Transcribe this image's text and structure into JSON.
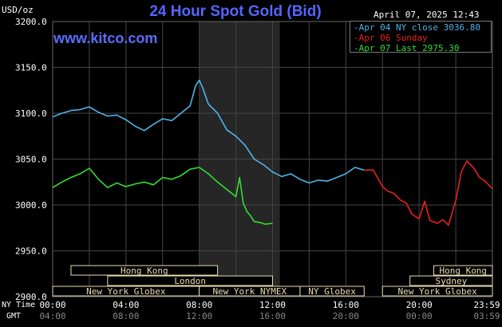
{
  "header": {
    "title": "24 Hour Spot Gold (Bid)",
    "unit": "USD/oz",
    "brand": "www.kitco.com",
    "date": "April 07, 2025 12:43"
  },
  "axis_labels": {
    "ny_time": "NY Time",
    "gmt": "GMT"
  },
  "colors": {
    "background": "#000000",
    "grid": "#444444",
    "shade": "#262626",
    "apr04": "#4fb3e8",
    "apr06": "#e82020",
    "apr07": "#33dd33",
    "title": "#5566ff",
    "session_fill": "#e8dcb4"
  },
  "chart_data": {
    "type": "line",
    "title": "24 Hour Spot Gold (Bid)",
    "ylabel": "USD/oz",
    "ylim": [
      2900,
      3200
    ],
    "y_ticks": [
      "3200.0",
      "3150.0",
      "3100.0",
      "3050.0",
      "3000.0",
      "2950.0",
      "2900.0"
    ],
    "x_ticks_ny": [
      "00:00",
      "04:00",
      "08:00",
      "12:00",
      "16:00",
      "20:00",
      "23:59"
    ],
    "x_ticks_gmt": [
      "04:00",
      "08:00",
      "12:00",
      "16:00",
      "20:00",
      "00:00",
      "03:59"
    ],
    "xlim_hours": [
      0,
      24
    ],
    "shaded_hours": [
      8.0,
      12.4
    ],
    "legend": [
      "Apr 04 NY close 3036.80",
      "Apr 06 Sunday",
      "Apr 07 Last 2975.30"
    ],
    "sessions": [
      {
        "label": "Hong Kong",
        "start": 1.0,
        "end": 9.0
      },
      {
        "label": "London",
        "start": 3.0,
        "end": 12.0
      },
      {
        "label": "New York Globex",
        "start": 0.0,
        "end": 8.0
      },
      {
        "label": "New York NYMEX",
        "start": 8.0,
        "end": 13.5
      },
      {
        "label": "NY Globex",
        "start": 13.5,
        "end": 17.0
      },
      {
        "label": "Hong Kong",
        "start": 20.8,
        "end": 24.0
      },
      {
        "label": "Sydney",
        "start": 19.5,
        "end": 24.0
      },
      {
        "label": "New York Globex",
        "start": 18.0,
        "end": 24.0
      }
    ],
    "series": [
      {
        "name": "Apr 04 NY close 3036.80",
        "x": [
          0.0,
          0.5,
          1.0,
          1.5,
          2.0,
          2.5,
          3.0,
          3.5,
          4.0,
          4.5,
          5.0,
          5.5,
          6.0,
          6.5,
          7.0,
          7.5,
          7.8,
          8.0,
          8.2,
          8.5,
          9.0,
          9.5,
          10.0,
          10.5,
          11.0,
          11.5,
          12.0,
          12.5,
          13.0,
          13.5,
          14.0,
          14.5,
          15.0,
          15.5,
          16.0,
          16.5,
          17.0
        ],
        "values": [
          3096,
          3100,
          3103,
          3104,
          3107,
          3101,
          3097,
          3098,
          3093,
          3086,
          3081,
          3088,
          3094,
          3092,
          3100,
          3108,
          3130,
          3136,
          3127,
          3110,
          3100,
          3082,
          3075,
          3065,
          3050,
          3044,
          3036,
          3031,
          3034,
          3028,
          3024,
          3027,
          3026,
          3030,
          3034,
          3041,
          3038
        ]
      },
      {
        "name": "Apr 06 Sunday",
        "x": [
          17.0,
          17.5,
          18.0,
          18.3,
          18.6,
          19.0,
          19.3,
          19.6,
          20.0,
          20.3,
          20.6,
          21.0,
          21.3,
          21.6,
          22.0,
          22.3,
          22.6,
          23.0,
          23.3,
          23.6,
          23.98
        ],
        "values": [
          3038,
          3038,
          3020,
          3015,
          3013,
          3005,
          3002,
          2990,
          2985,
          3004,
          2983,
          2980,
          2984,
          2978,
          3005,
          3036,
          3048,
          3040,
          3030,
          3026,
          3018
        ]
      },
      {
        "name": "Apr 07 Last 2975.30",
        "x": [
          0.0,
          0.5,
          1.0,
          1.5,
          2.0,
          2.5,
          3.0,
          3.5,
          4.0,
          4.5,
          5.0,
          5.5,
          6.0,
          6.5,
          7.0,
          7.5,
          8.0,
          8.5,
          9.0,
          9.5,
          10.0,
          10.2,
          10.4,
          10.6,
          10.8,
          11.0,
          11.3,
          11.6,
          12.0
        ],
        "values": [
          3019,
          3025,
          3030,
          3034,
          3040,
          3028,
          3019,
          3024,
          3020,
          3023,
          3025,
          3022,
          3030,
          3028,
          3032,
          3039,
          3041,
          3034,
          3025,
          3017,
          3009,
          3030,
          3002,
          2993,
          2988,
          2982,
          2981,
          2979,
          2980
        ]
      }
    ]
  }
}
